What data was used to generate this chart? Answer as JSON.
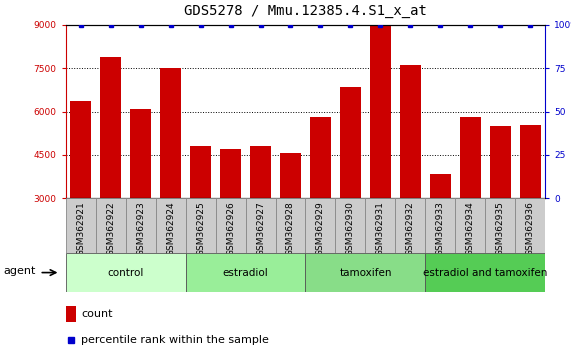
{
  "title": "GDS5278 / Mmu.12385.4.S1_x_at",
  "samples": [
    "GSM362921",
    "GSM362922",
    "GSM362923",
    "GSM362924",
    "GSM362925",
    "GSM362926",
    "GSM362927",
    "GSM362928",
    "GSM362929",
    "GSM362930",
    "GSM362931",
    "GSM362932",
    "GSM362933",
    "GSM362934",
    "GSM362935",
    "GSM362936"
  ],
  "counts": [
    6350,
    7900,
    6100,
    7500,
    4800,
    4700,
    4800,
    4550,
    5800,
    6850,
    8980,
    7600,
    3850,
    5800,
    5500,
    5550
  ],
  "percentile": [
    100,
    100,
    100,
    100,
    100,
    100,
    100,
    100,
    100,
    100,
    100,
    100,
    100,
    100,
    100,
    100
  ],
  "bar_color": "#cc0000",
  "dot_color": "#0000cc",
  "ylim_left": [
    3000,
    9000
  ],
  "ylim_right": [
    0,
    100
  ],
  "yticks_left": [
    3000,
    4500,
    6000,
    7500,
    9000
  ],
  "yticks_right": [
    0,
    25,
    50,
    75,
    100
  ],
  "groups": [
    {
      "label": "control",
      "start": 0,
      "end": 4,
      "color": "#ccffcc"
    },
    {
      "label": "estradiol",
      "start": 4,
      "end": 8,
      "color": "#99ee99"
    },
    {
      "label": "tamoxifen",
      "start": 8,
      "end": 12,
      "color": "#88dd88"
    },
    {
      "label": "estradiol and tamoxifen",
      "start": 12,
      "end": 16,
      "color": "#55cc55"
    }
  ],
  "agent_label": "agent",
  "legend_count_label": "count",
  "legend_percentile_label": "percentile rank within the sample",
  "title_fontsize": 10,
  "axis_tick_fontsize": 6.5,
  "group_fontsize": 7.5,
  "label_fontsize": 8,
  "background_color": "#ffffff",
  "plot_bg_color": "#ffffff",
  "grid_color": "#000000",
  "tick_color_left": "#cc0000",
  "tick_color_right": "#0000cc",
  "xtick_bg_color": "#cccccc",
  "xtick_border_color": "#888888"
}
